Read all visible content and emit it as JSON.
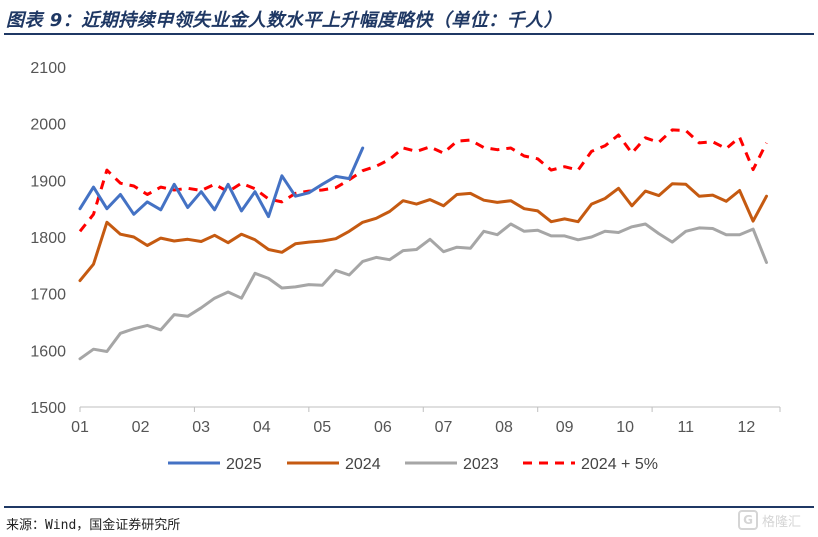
{
  "header": {
    "title": "图表 9：近期持续申领失业金人数水平上升幅度略快（单位：千人）"
  },
  "footer": {
    "source": "来源：Wind，国金证券研究所",
    "watermark_label": "格隆汇",
    "watermark_icon": "logo-mark-icon"
  },
  "chart_data": {
    "type": "line",
    "title": "",
    "xlabel": "",
    "ylabel": "",
    "ylim": [
      1500,
      2100
    ],
    "yticks": [
      "1500",
      "1600",
      "1700",
      "1800",
      "1900",
      "2000",
      "2100"
    ],
    "xlim": [
      1,
      53
    ],
    "xticks": [
      {
        "label": "01",
        "week": 1
      },
      {
        "label": "02",
        "week": 5.5
      },
      {
        "label": "03",
        "week": 10
      },
      {
        "label": "04",
        "week": 14.5
      },
      {
        "label": "05",
        "week": 19
      },
      {
        "label": "06",
        "week": 23.5
      },
      {
        "label": "07",
        "week": 28
      },
      {
        "label": "08",
        "week": 32.5
      },
      {
        "label": "09",
        "week": 37
      },
      {
        "label": "10",
        "week": 41.5
      },
      {
        "label": "11",
        "week": 46
      },
      {
        "label": "12",
        "week": 50.5
      }
    ],
    "grid": false,
    "legend_position": "bottom",
    "series": [
      {
        "name": "2025",
        "color": "#4472c4",
        "dash": "solid",
        "values": [
          1850,
          1888,
          1850,
          1875,
          1840,
          1862,
          1848,
          1893,
          1852,
          1880,
          1848,
          1893,
          1846,
          1880,
          1836,
          1908,
          1872,
          1878,
          1893,
          1907,
          1903,
          1957
        ]
      },
      {
        "name": "2024",
        "color": "#c55a11",
        "dash": "solid",
        "values": [
          1723,
          1752,
          1826,
          1805,
          1800,
          1785,
          1798,
          1793,
          1796,
          1792,
          1803,
          1790,
          1805,
          1795,
          1778,
          1773,
          1788,
          1791,
          1793,
          1797,
          1810,
          1826,
          1833,
          1845,
          1864,
          1858,
          1866,
          1855,
          1875,
          1877,
          1865,
          1861,
          1864,
          1850,
          1846,
          1827,
          1832,
          1827,
          1858,
          1868,
          1886,
          1855,
          1881,
          1873,
          1894,
          1893,
          1872,
          1874,
          1863,
          1882,
          1828,
          1872
        ]
      },
      {
        "name": "2023",
        "color": "#a6a6a6",
        "dash": "solid",
        "values": [
          1585,
          1602,
          1598,
          1630,
          1638,
          1644,
          1636,
          1663,
          1660,
          1675,
          1692,
          1703,
          1692,
          1736,
          1727,
          1710,
          1712,
          1716,
          1715,
          1741,
          1733,
          1757,
          1764,
          1760,
          1776,
          1778,
          1796,
          1774,
          1782,
          1780,
          1810,
          1804,
          1823,
          1810,
          1812,
          1802,
          1802,
          1795,
          1800,
          1810,
          1808,
          1818,
          1823,
          1806,
          1791,
          1810,
          1816,
          1815,
          1804,
          1804,
          1814,
          1755
        ]
      },
      {
        "name": "2024 + 5%",
        "color": "#ff0000",
        "dash": "dashed",
        "values": [
          1810,
          1840,
          1918,
          1895,
          1890,
          1875,
          1888,
          1883,
          1886,
          1882,
          1893,
          1880,
          1895,
          1885,
          1867,
          1862,
          1877,
          1881,
          1883,
          1887,
          1901,
          1917,
          1925,
          1937,
          1957,
          1951,
          1959,
          1948,
          1969,
          1971,
          1958,
          1954,
          1957,
          1943,
          1938,
          1918,
          1924,
          1918,
          1951,
          1961,
          1980,
          1948,
          1975,
          1967,
          1989,
          1988,
          1966,
          1968,
          1956,
          1976,
          1919,
          1966
        ]
      }
    ]
  }
}
